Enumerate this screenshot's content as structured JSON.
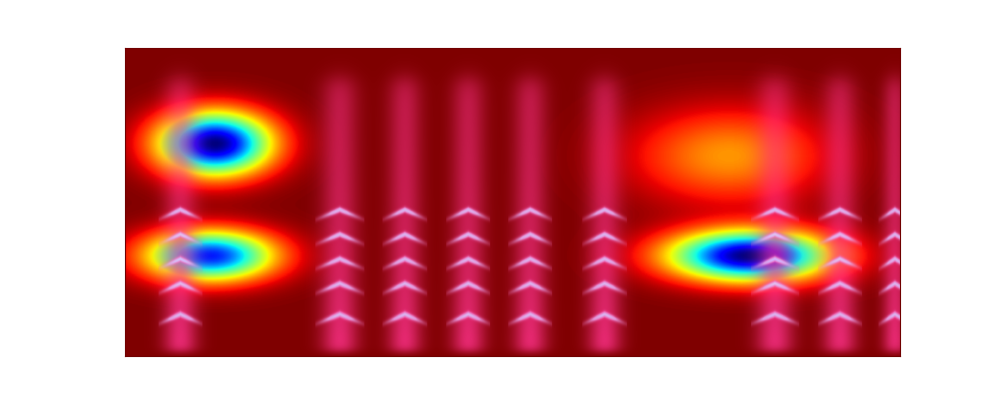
{
  "chart_data": {
    "type": "heatmap",
    "tick_labels": false,
    "xlim": [
      0,
      100
    ],
    "ylim": [
      0,
      100
    ],
    "syllables": [
      {
        "time": 7.1,
        "width": 2.2
      },
      {
        "time": 27.7,
        "width": 2.4
      },
      {
        "time": 36.1,
        "width": 2.2
      },
      {
        "time": 44.3,
        "width": 2.2
      },
      {
        "time": 52.3,
        "width": 2.2
      },
      {
        "time": 61.9,
        "width": 2.2
      },
      {
        "time": 83.9,
        "width": 2.4
      },
      {
        "time": 92.3,
        "width": 2.2
      },
      {
        "time": 99.4,
        "width": 1.6
      }
    ],
    "harmonics": [
      11,
      21,
      29,
      37,
      45
    ],
    "attention": [
      {
        "time": 11.6,
        "freq": 69,
        "time_spread": 7,
        "freq_spread": 10,
        "weight": 1.0
      },
      {
        "time": 11.0,
        "freq": 32.5,
        "time_spread": 8,
        "freq_spread": 8,
        "weight": 0.85
      },
      {
        "time": 80.6,
        "freq": 32.5,
        "time_spread": 10,
        "freq_spread": 8,
        "weight": 1.0
      },
      {
        "time": 78.0,
        "freq": 65,
        "time_spread": 12,
        "freq_spread": 15,
        "weight": 0.25
      }
    ]
  }
}
